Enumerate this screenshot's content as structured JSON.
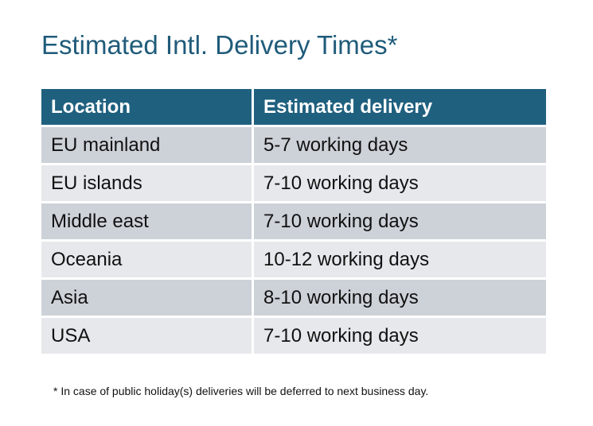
{
  "title": "Estimated Intl. Delivery Times*",
  "colors": {
    "header_bg": "#20607f",
    "title": "#1f5b7a",
    "row_odd": "#cdd1d8",
    "row_even": "#e6e8eb"
  },
  "table": {
    "headers": [
      "Location",
      "Estimated delivery"
    ],
    "rows": [
      [
        "EU mainland",
        "5-7 working days"
      ],
      [
        "EU islands",
        "7-10 working days"
      ],
      [
        "Middle east",
        "7-10 working days"
      ],
      [
        "Oceania",
        "10-12 working days"
      ],
      [
        "Asia",
        "8-10 working days"
      ],
      [
        "USA",
        "7-10 working days"
      ]
    ]
  },
  "footnote": "* In case of public holiday(s) deliveries will be deferred to next business day."
}
